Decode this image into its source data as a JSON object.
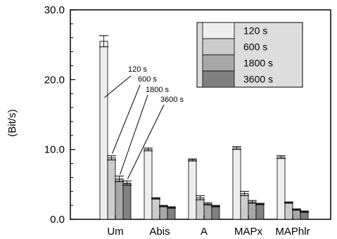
{
  "chart_data": {
    "type": "bar",
    "title": "",
    "xlabel": "",
    "ylabel": "(Bit/s)",
    "ylim": [
      0,
      30
    ],
    "yticks": [
      "0.0",
      "10.0",
      "20.0",
      "30.0"
    ],
    "categories": [
      "Um",
      "Abis",
      "A",
      "MAPx",
      "MAPhlr"
    ],
    "series": [
      {
        "name": "120 s",
        "color": "#eeeeee",
        "values": [
          25.5,
          10.0,
          8.5,
          10.2,
          8.9
        ],
        "errors": [
          0.8,
          0.2,
          0.15,
          0.2,
          0.2
        ]
      },
      {
        "name": "600 s",
        "color": "#cccccc",
        "values": [
          8.8,
          3.0,
          3.1,
          3.7,
          2.4
        ],
        "errors": [
          0.3,
          0.1,
          0.3,
          0.3,
          0.1
        ]
      },
      {
        "name": "1800 s",
        "color": "#a8a8a8",
        "values": [
          5.8,
          1.9,
          2.2,
          2.5,
          1.4
        ],
        "errors": [
          0.4,
          0.1,
          0.15,
          0.2,
          0.1
        ]
      },
      {
        "name": "3600 s",
        "color": "#808080",
        "values": [
          5.2,
          1.7,
          1.9,
          2.2,
          1.1
        ],
        "errors": [
          0.3,
          0.1,
          0.1,
          0.1,
          0.1
        ]
      }
    ],
    "legend_placement": "top-right",
    "annotations": [
      "120 s",
      "600 s",
      "1800 s",
      "3600 s"
    ],
    "grid": false
  }
}
